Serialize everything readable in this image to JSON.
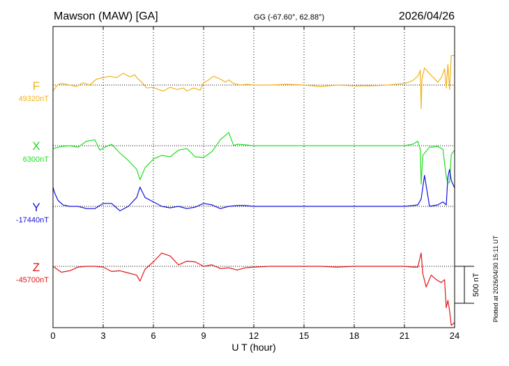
{
  "header": {
    "station": "Mawson (MAW)  [GA]",
    "coords": "GG (-67.60°,  62.88°)",
    "date": "2026/04/26"
  },
  "footer": {
    "plotted": "Plotted at 2026/04/30 15:11 UT"
  },
  "chart_data": {
    "type": "line",
    "xlabel": "U T (hour)",
    "ylabel": "",
    "xlim": [
      0,
      24
    ],
    "xticks": [
      0,
      3,
      6,
      9,
      12,
      15,
      18,
      21,
      24
    ],
    "scale_bar": {
      "label": "500 nT",
      "value_nT": 500
    },
    "grid": "dotted vertical lines every 3 h, dotted horizontal baseline per component",
    "series": [
      {
        "name": "F",
        "baseline_label": "49320nT",
        "color": "#f2b21a",
        "x": [
          0,
          0.3,
          0.6,
          1.0,
          1.4,
          1.8,
          2.2,
          2.6,
          3.0,
          3.4,
          3.8,
          4.2,
          4.6,
          4.9,
          5.0,
          5.3,
          5.6,
          6.0,
          6.3,
          6.6,
          7.0,
          7.4,
          7.8,
          8.0,
          8.4,
          8.8,
          9.0,
          9.3,
          9.6,
          10.0,
          10.3,
          10.5,
          10.8,
          11.2,
          11.6,
          12,
          13,
          14,
          15,
          16,
          17,
          18,
          19,
          20,
          21,
          21.5,
          21.8,
          21.95,
          22.0,
          22.05,
          22.2,
          22.6,
          23.0,
          23.2,
          23.4,
          23.5,
          23.6,
          23.7,
          23.8,
          24
        ],
        "values": [
          -80,
          10,
          20,
          0,
          -20,
          30,
          0,
          80,
          100,
          120,
          100,
          160,
          110,
          140,
          100,
          40,
          -40,
          -30,
          -60,
          -80,
          -30,
          -60,
          -40,
          -80,
          -40,
          -70,
          30,
          70,
          120,
          80,
          40,
          70,
          20,
          0,
          10,
          0,
          0,
          10,
          0,
          -20,
          0,
          -10,
          -10,
          0,
          20,
          60,
          120,
          200,
          -320,
          80,
          230,
          130,
          40,
          100,
          220,
          -40,
          280,
          -60,
          400,
          400
        ]
      },
      {
        "name": "X",
        "baseline_label": "6300nT",
        "color": "#22dd22",
        "x": [
          0,
          0.5,
          1.0,
          1.5,
          2.0,
          2.5,
          2.8,
          3.0,
          3.5,
          4.0,
          4.5,
          5.0,
          5.2,
          5.5,
          6.0,
          6.5,
          7.0,
          7.5,
          8.0,
          8.5,
          9.0,
          9.5,
          10.0,
          10.5,
          10.8,
          11.0,
          11.5,
          12,
          13,
          14,
          15,
          16,
          17,
          18,
          19,
          20,
          21,
          21.5,
          21.8,
          21.95,
          22.0,
          22.1,
          22.5,
          23.0,
          23.3,
          23.5,
          23.6,
          23.7,
          23.8,
          24
        ],
        "values": [
          -40,
          -10,
          0,
          -20,
          60,
          80,
          -60,
          -30,
          20,
          -100,
          -200,
          -320,
          -460,
          -300,
          -180,
          -130,
          -150,
          -60,
          -40,
          -150,
          -160,
          -80,
          80,
          180,
          0,
          20,
          10,
          0,
          0,
          0,
          0,
          0,
          0,
          0,
          0,
          0,
          0,
          20,
          60,
          -50,
          -520,
          -130,
          -20,
          -10,
          -50,
          -420,
          -500,
          -500,
          -120,
          -60
        ]
      },
      {
        "name": "Y",
        "baseline_label": "-17440nT",
        "color": "#1111dd",
        "x": [
          0,
          0.1,
          0.3,
          0.6,
          1.0,
          1.5,
          2.0,
          2.5,
          3.0,
          3.5,
          4.0,
          4.5,
          5.0,
          5.2,
          5.5,
          6.0,
          6.5,
          7.0,
          7.5,
          8.0,
          8.5,
          9.0,
          9.5,
          10.0,
          10.5,
          11.0,
          11.5,
          12,
          13,
          14,
          15,
          16,
          17,
          18,
          19,
          20,
          21,
          21.5,
          21.8,
          22.0,
          22.2,
          22.5,
          23.0,
          23.3,
          23.5,
          23.6,
          23.7,
          23.8,
          24
        ],
        "values": [
          260,
          180,
          80,
          20,
          0,
          0,
          -30,
          -30,
          40,
          40,
          -60,
          0,
          120,
          260,
          120,
          60,
          0,
          -20,
          0,
          -30,
          -10,
          40,
          20,
          -30,
          0,
          10,
          10,
          0,
          0,
          0,
          0,
          0,
          0,
          0,
          0,
          0,
          0,
          10,
          20,
          100,
          420,
          0,
          20,
          60,
          20,
          400,
          500,
          350,
          250
        ]
      },
      {
        "name": "Z",
        "baseline_label": "-45700nT",
        "color": "#e01515",
        "x": [
          0,
          0.5,
          1.0,
          1.5,
          2.0,
          2.5,
          3.0,
          3.5,
          4.0,
          4.5,
          5.0,
          5.2,
          5.5,
          6.0,
          6.5,
          7.0,
          7.5,
          8.0,
          8.5,
          9.0,
          9.5,
          10.0,
          10.5,
          11.0,
          11.5,
          12,
          13,
          14,
          15,
          16,
          17,
          18,
          19,
          20,
          21,
          21.5,
          21.8,
          22.0,
          22.1,
          22.3,
          22.6,
          22.9,
          23.2,
          23.4,
          23.5,
          23.6,
          23.7,
          23.8,
          24
        ],
        "values": [
          0,
          -80,
          -60,
          -10,
          0,
          0,
          -10,
          -70,
          -60,
          -90,
          -120,
          -200,
          -40,
          60,
          180,
          140,
          20,
          70,
          60,
          0,
          20,
          -30,
          -20,
          -50,
          -20,
          -10,
          0,
          0,
          0,
          0,
          -10,
          0,
          0,
          0,
          0,
          -10,
          -10,
          180,
          -100,
          -280,
          -120,
          -180,
          -220,
          -180,
          -560,
          -460,
          -600,
          -800,
          -760
        ]
      }
    ]
  }
}
